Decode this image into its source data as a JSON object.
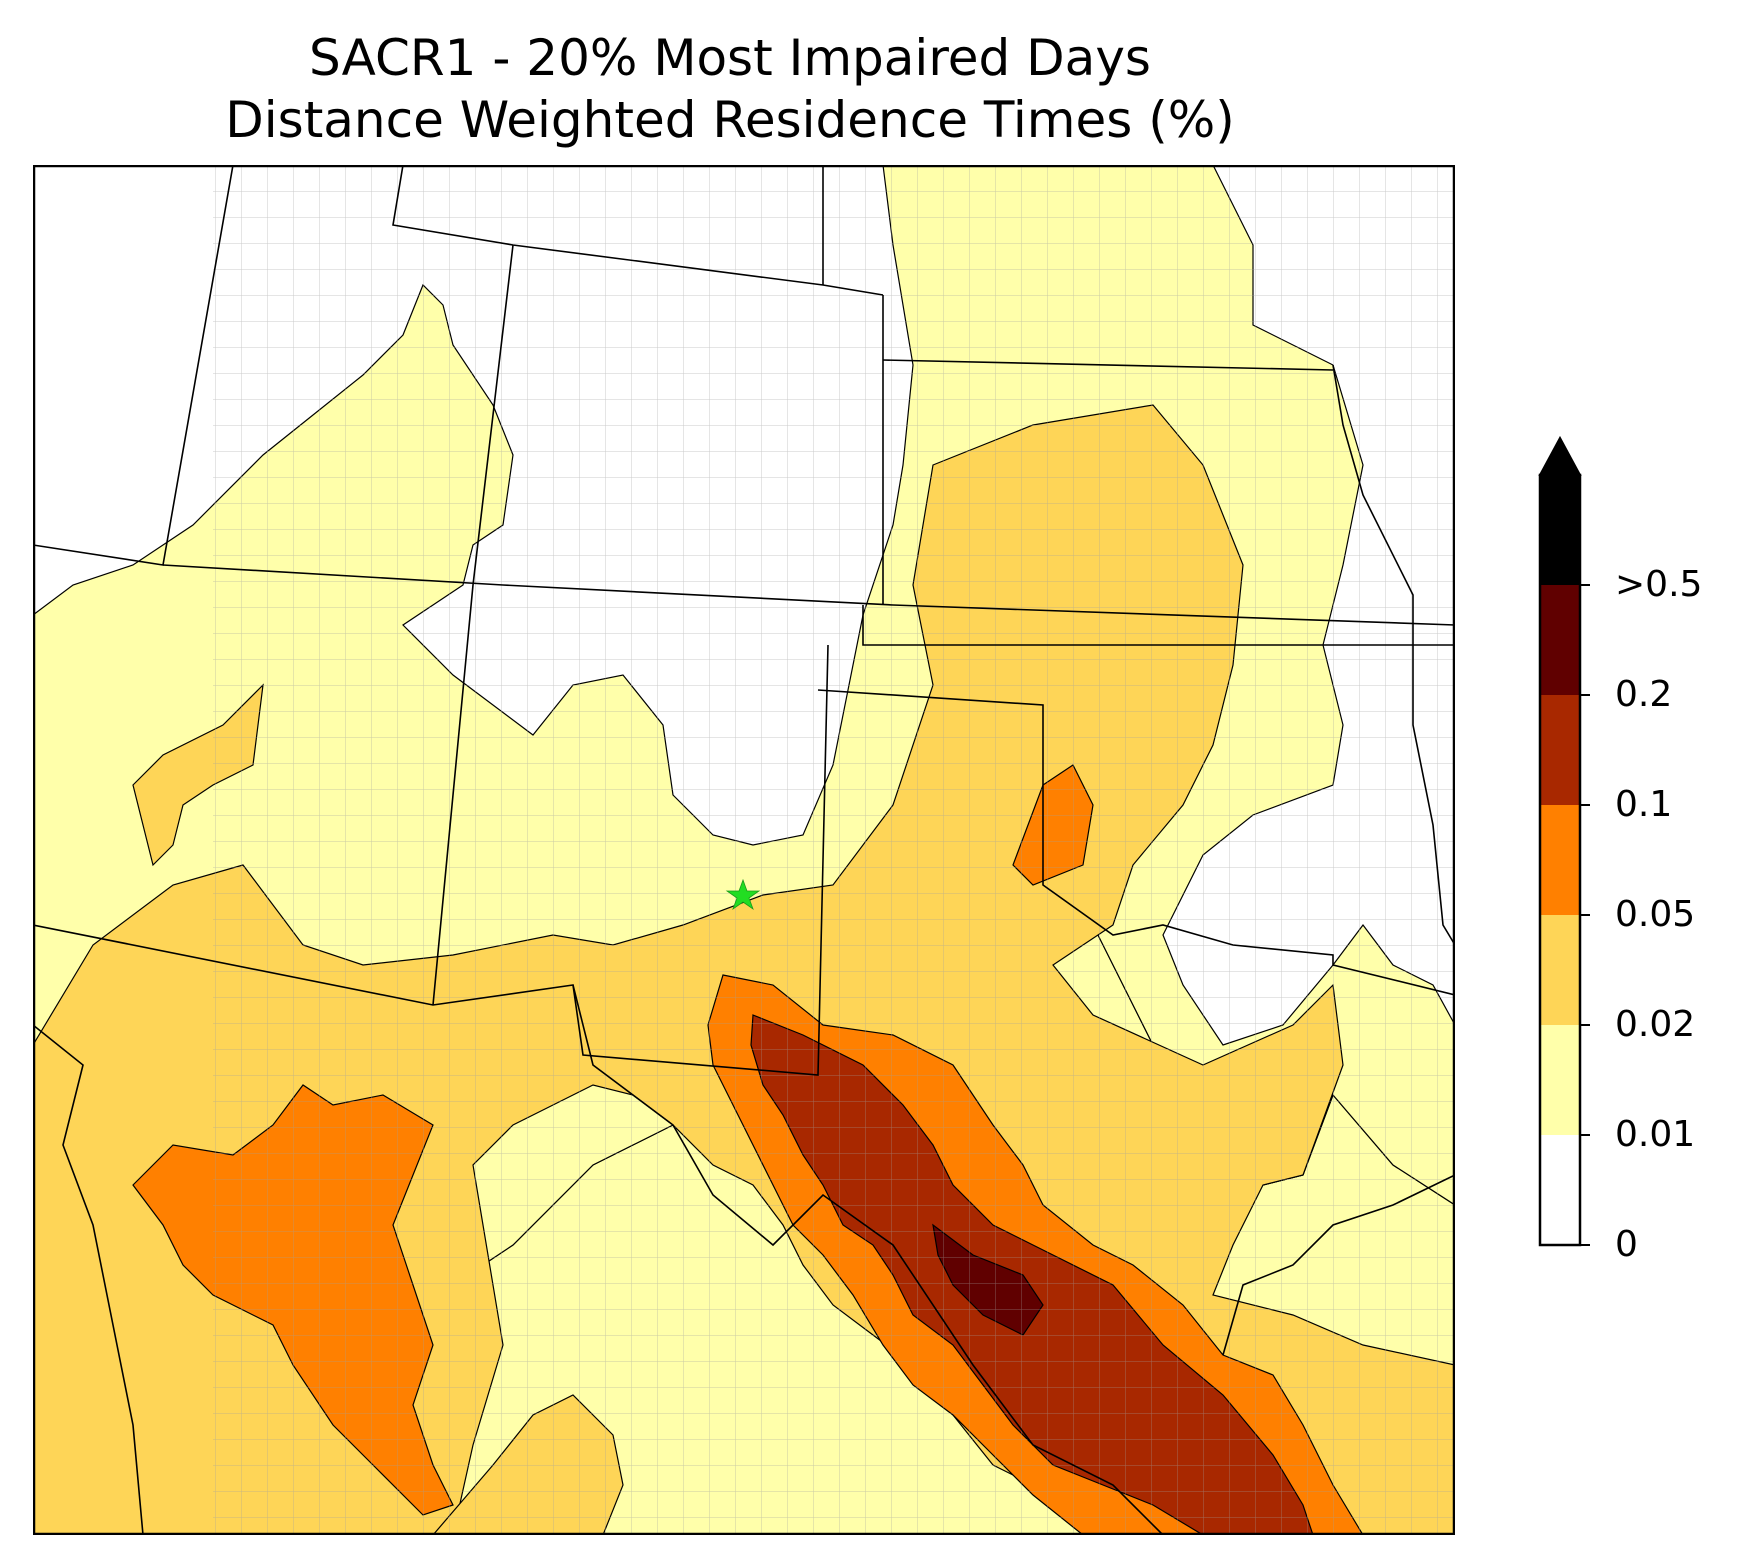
{
  "title": {
    "line1": "SACR1 - 20% Most Impaired Days",
    "line2": "Distance Weighted Residence Times (%)"
  },
  "site_marker": {
    "symbol": "star",
    "color": "#22dd22"
  },
  "colorbar": {
    "extend": "max",
    "bins": [
      {
        "from": "0",
        "to": "0.01",
        "color": "#ffffff"
      },
      {
        "from": "0.01",
        "to": "0.02",
        "color": "#ffffaa"
      },
      {
        "from": "0.02",
        "to": "0.05",
        "color": "#fed557"
      },
      {
        "from": "0.05",
        "to": "0.1",
        "color": "#ff8000"
      },
      {
        "from": "0.1",
        "to": "0.2",
        "color": "#a82800"
      },
      {
        "from": "0.2",
        "to": ">0.5",
        "color": "#600000"
      },
      {
        "from": ">0.5",
        "to": "",
        "color": "#000000"
      }
    ],
    "tick_labels": [
      "0",
      "0.01",
      "0.02",
      "0.05",
      "0.1",
      "0.2",
      ">0.5"
    ]
  },
  "colors": {
    "lvl1": "#ffffaa",
    "lvl2": "#fed557",
    "lvl3": "#ff8000",
    "lvl4": "#a82800",
    "lvl5": "#600000",
    "state_line": "#000000",
    "county_line": "#a0a0a0"
  }
}
